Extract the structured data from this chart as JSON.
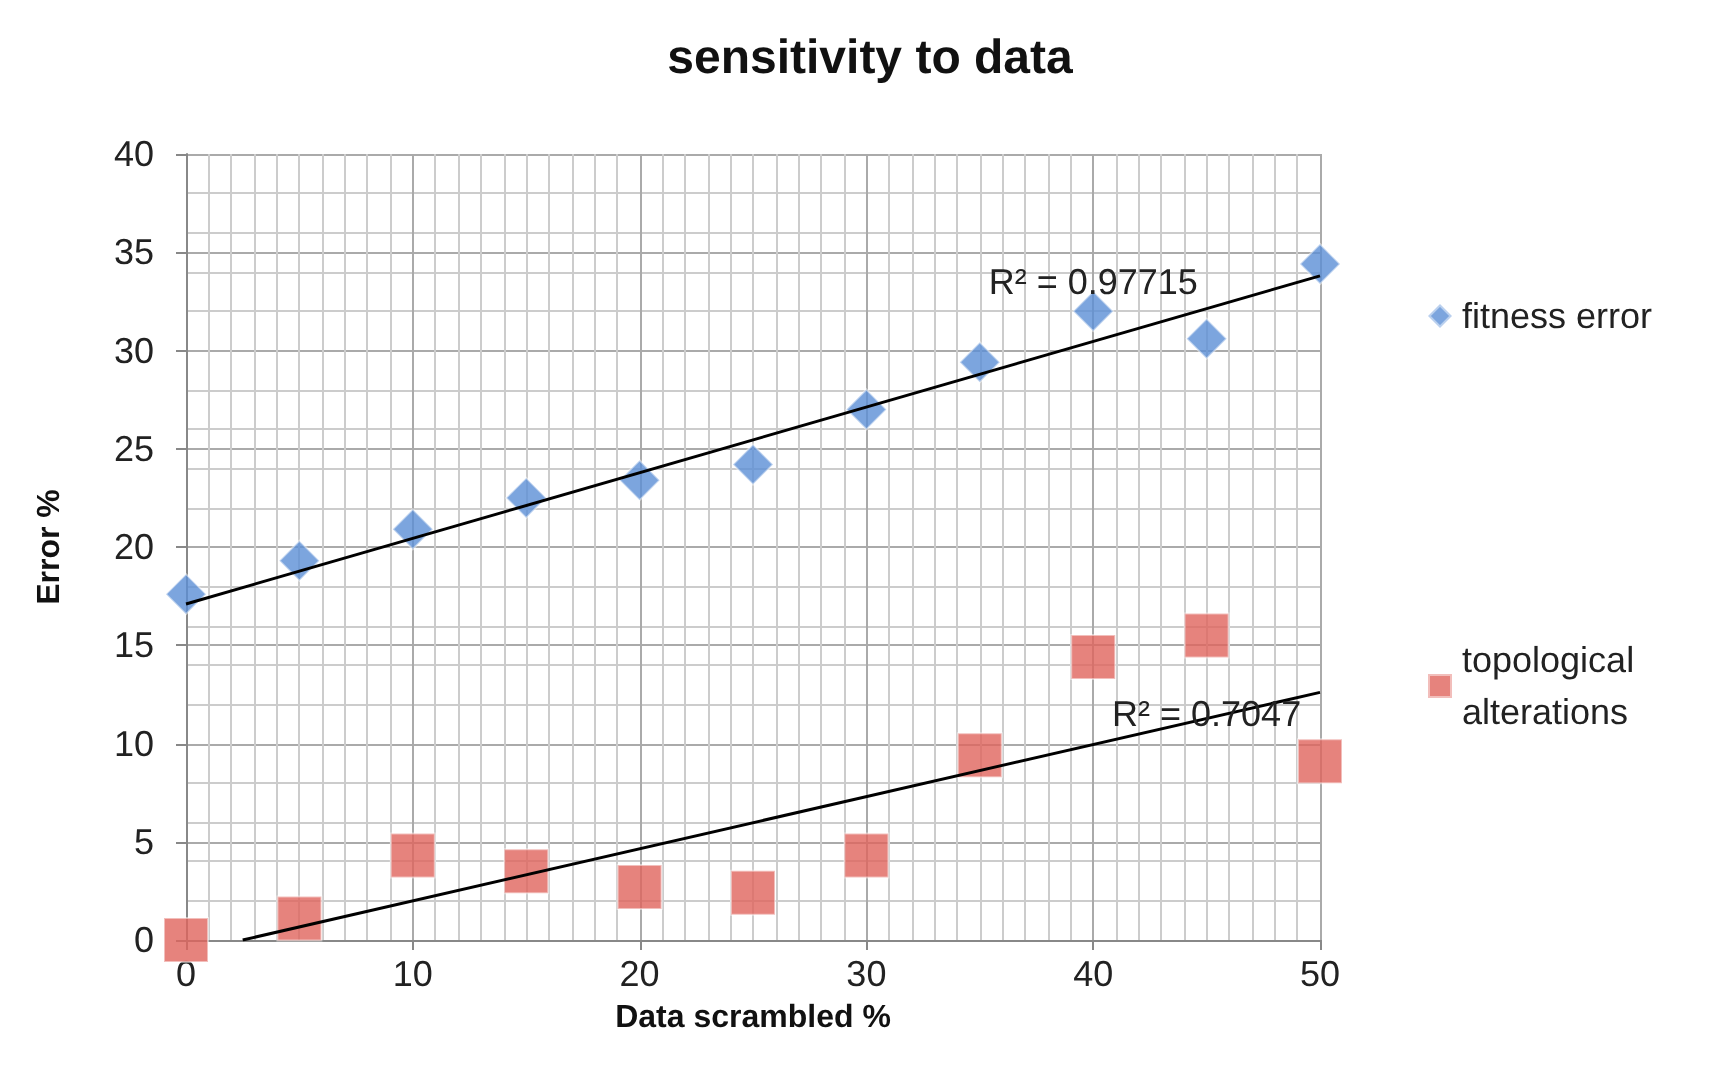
{
  "chart_data": {
    "type": "scatter",
    "title": "sensitivity to data",
    "xlabel": "Data scrambled %",
    "ylabel": "Error %",
    "x": [
      0,
      5,
      10,
      15,
      20,
      25,
      30,
      35,
      40,
      45,
      50
    ],
    "series": [
      {
        "name": "fitness error",
        "color": "#5b8fd6",
        "marker": "diamond",
        "values": [
          17.6,
          19.3,
          20.9,
          22.5,
          23.4,
          24.2,
          27.0,
          29.4,
          32.0,
          30.6,
          34.4
        ]
      },
      {
        "name": "topological alterations",
        "color": "#e0645c",
        "marker": "square",
        "values": [
          0,
          1.1,
          4.3,
          3.5,
          2.7,
          2.4,
          4.3,
          9.4,
          14.4,
          15.5,
          9.1
        ]
      },
      {
        "type": "line",
        "color": "#000000",
        "marker": "none",
        "x": [
          0,
          50
        ],
        "values": [
          17.1,
          33.8
        ]
      },
      {
        "type": "line",
        "color": "#000000",
        "marker": "none",
        "x": [
          2.5,
          50
        ],
        "values": [
          0,
          12.6
        ]
      }
    ],
    "annotations": [
      {
        "text": "R² = 0.97715",
        "x": 40,
        "y": 33.5
      },
      {
        "text": "R² = 0.7047",
        "x": 45,
        "y": 11.5
      }
    ],
    "xlim": [
      0,
      50
    ],
    "xticks": [
      0,
      10,
      20,
      30,
      40,
      50
    ],
    "ylim": [
      0,
      40
    ],
    "yticks": [
      0,
      5,
      10,
      15,
      20,
      25,
      30,
      35,
      40
    ],
    "grid": true,
    "legend": "right"
  }
}
